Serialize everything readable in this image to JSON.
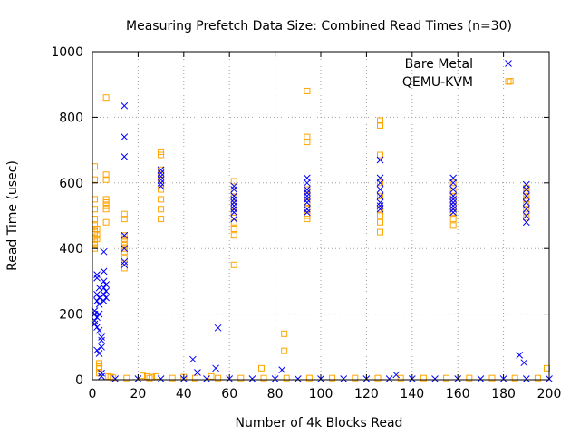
{
  "chart_data": {
    "type": "scatter",
    "title": "Measuring Prefetch Data Size: Combined Read Times (n=30)",
    "xlabel": "Number of 4k Blocks Read",
    "ylabel": "Read Time (usec)",
    "xlim": [
      0,
      200
    ],
    "ylim": [
      0,
      1000
    ],
    "xticks": [
      0,
      20,
      40,
      60,
      80,
      100,
      120,
      140,
      160,
      180,
      200
    ],
    "yticks": [
      0,
      200,
      400,
      600,
      800,
      1000
    ],
    "grid": true,
    "legend_position": "top-right",
    "series": [
      {
        "name": "Bare Metal",
        "marker": "x",
        "color": "#0000ff",
        "points": [
          [
            1,
            180
          ],
          [
            1,
            200
          ],
          [
            1,
            170
          ],
          [
            1,
            210
          ],
          [
            2,
            90
          ],
          [
            2,
            160
          ],
          [
            2,
            190
          ],
          [
            2,
            240
          ],
          [
            2,
            260
          ],
          [
            2,
            310
          ],
          [
            2,
            320
          ],
          [
            3,
            80
          ],
          [
            3,
            150
          ],
          [
            3,
            200
          ],
          [
            3,
            230
          ],
          [
            3,
            250
          ],
          [
            3,
            280
          ],
          [
            4,
            100
          ],
          [
            4,
            120
          ],
          [
            4,
            130
          ],
          [
            4,
            20
          ],
          [
            4,
            10
          ],
          [
            5,
            240
          ],
          [
            5,
            260
          ],
          [
            5,
            280
          ],
          [
            5,
            300
          ],
          [
            5,
            330
          ],
          [
            5,
            390
          ],
          [
            6,
            250
          ],
          [
            6,
            270
          ],
          [
            6,
            290
          ],
          [
            14,
            835
          ],
          [
            14,
            740
          ],
          [
            14,
            680
          ],
          [
            14,
            440
          ],
          [
            14,
            400
          ],
          [
            14,
            360
          ],
          [
            14,
            350
          ],
          [
            30,
            640
          ],
          [
            30,
            630
          ],
          [
            30,
            620
          ],
          [
            30,
            610
          ],
          [
            30,
            600
          ],
          [
            30,
            590
          ],
          [
            44,
            62
          ],
          [
            46,
            22
          ],
          [
            54,
            35
          ],
          [
            55,
            158
          ],
          [
            62,
            590
          ],
          [
            62,
            580
          ],
          [
            62,
            560
          ],
          [
            62,
            550
          ],
          [
            62,
            540
          ],
          [
            62,
            530
          ],
          [
            62,
            520
          ],
          [
            62,
            510
          ],
          [
            62,
            490
          ],
          [
            83,
            30
          ],
          [
            94,
            615
          ],
          [
            94,
            600
          ],
          [
            94,
            580
          ],
          [
            94,
            570
          ],
          [
            94,
            560
          ],
          [
            94,
            550
          ],
          [
            94,
            540
          ],
          [
            94,
            520
          ],
          [
            94,
            510
          ],
          [
            126,
            670
          ],
          [
            126,
            615
          ],
          [
            126,
            600
          ],
          [
            126,
            580
          ],
          [
            126,
            560
          ],
          [
            126,
            540
          ],
          [
            126,
            530
          ],
          [
            126,
            520
          ],
          [
            133,
            15
          ],
          [
            158,
            615
          ],
          [
            158,
            600
          ],
          [
            158,
            580
          ],
          [
            158,
            560
          ],
          [
            158,
            550
          ],
          [
            158,
            540
          ],
          [
            158,
            530
          ],
          [
            158,
            520
          ],
          [
            158,
            510
          ],
          [
            187,
            75
          ],
          [
            189,
            52
          ],
          [
            190,
            595
          ],
          [
            190,
            580
          ],
          [
            190,
            560
          ],
          [
            190,
            540
          ],
          [
            190,
            520
          ],
          [
            190,
            500
          ],
          [
            190,
            480
          ],
          [
            10,
            2
          ],
          [
            20,
            2
          ],
          [
            30,
            2
          ],
          [
            40,
            2
          ],
          [
            50,
            2
          ],
          [
            60,
            2
          ],
          [
            70,
            2
          ],
          [
            80,
            2
          ],
          [
            90,
            2
          ],
          [
            100,
            2
          ],
          [
            110,
            2
          ],
          [
            120,
            2
          ],
          [
            130,
            2
          ],
          [
            140,
            2
          ],
          [
            150,
            2
          ],
          [
            160,
            2
          ],
          [
            170,
            2
          ],
          [
            180,
            2
          ],
          [
            190,
            2
          ],
          [
            200,
            2
          ]
        ]
      },
      {
        "name": "QEMU-KVM",
        "marker": "square",
        "color": "#ffa500",
        "points": [
          [
            1,
            650
          ],
          [
            1,
            610
          ],
          [
            1,
            550
          ],
          [
            1,
            520
          ],
          [
            1,
            490
          ],
          [
            1,
            470
          ],
          [
            1,
            460
          ],
          [
            1,
            450
          ],
          [
            1,
            430
          ],
          [
            1,
            420
          ],
          [
            1,
            410
          ],
          [
            1,
            400
          ],
          [
            2,
            460
          ],
          [
            2,
            440
          ],
          [
            2,
            430
          ],
          [
            3,
            50
          ],
          [
            3,
            40
          ],
          [
            3,
            35
          ],
          [
            3,
            20
          ],
          [
            6,
            860
          ],
          [
            6,
            625
          ],
          [
            6,
            610
          ],
          [
            6,
            550
          ],
          [
            6,
            540
          ],
          [
            6,
            530
          ],
          [
            6,
            520
          ],
          [
            6,
            480
          ],
          [
            7,
            10
          ],
          [
            8,
            8
          ],
          [
            9,
            6
          ],
          [
            14,
            505
          ],
          [
            14,
            490
          ],
          [
            14,
            440
          ],
          [
            14,
            430
          ],
          [
            14,
            420
          ],
          [
            14,
            410
          ],
          [
            14,
            400
          ],
          [
            14,
            390
          ],
          [
            14,
            370
          ],
          [
            14,
            340
          ],
          [
            22,
            12
          ],
          [
            24,
            10
          ],
          [
            26,
            8
          ],
          [
            28,
            10
          ],
          [
            30,
            695
          ],
          [
            30,
            685
          ],
          [
            30,
            640
          ],
          [
            30,
            625
          ],
          [
            30,
            610
          ],
          [
            30,
            580
          ],
          [
            30,
            550
          ],
          [
            30,
            520
          ],
          [
            30,
            490
          ],
          [
            40,
            8
          ],
          [
            52,
            10
          ],
          [
            62,
            605
          ],
          [
            62,
            575
          ],
          [
            62,
            555
          ],
          [
            62,
            530
          ],
          [
            62,
            510
          ],
          [
            62,
            480
          ],
          [
            62,
            460
          ],
          [
            62,
            440
          ],
          [
            62,
            350
          ],
          [
            74,
            35
          ],
          [
            84,
            140
          ],
          [
            84,
            88
          ],
          [
            94,
            880
          ],
          [
            94,
            740
          ],
          [
            94,
            725
          ],
          [
            94,
            580
          ],
          [
            94,
            560
          ],
          [
            94,
            540
          ],
          [
            94,
            520
          ],
          [
            94,
            500
          ],
          [
            94,
            490
          ],
          [
            126,
            790
          ],
          [
            126,
            775
          ],
          [
            126,
            685
          ],
          [
            126,
            600
          ],
          [
            126,
            560
          ],
          [
            126,
            520
          ],
          [
            126,
            500
          ],
          [
            126,
            480
          ],
          [
            126,
            450
          ],
          [
            158,
            600
          ],
          [
            158,
            575
          ],
          [
            158,
            560
          ],
          [
            158,
            545
          ],
          [
            158,
            530
          ],
          [
            158,
            510
          ],
          [
            158,
            490
          ],
          [
            158,
            470
          ],
          [
            183,
            910
          ],
          [
            190,
            585
          ],
          [
            190,
            575
          ],
          [
            190,
            560
          ],
          [
            190,
            550
          ],
          [
            190,
            535
          ],
          [
            190,
            520
          ],
          [
            190,
            495
          ],
          [
            199,
            35
          ],
          [
            15,
            5
          ],
          [
            25,
            5
          ],
          [
            35,
            5
          ],
          [
            45,
            5
          ],
          [
            55,
            5
          ],
          [
            65,
            5
          ],
          [
            75,
            5
          ],
          [
            85,
            5
          ],
          [
            95,
            5
          ],
          [
            105,
            5
          ],
          [
            115,
            5
          ],
          [
            125,
            5
          ],
          [
            135,
            5
          ],
          [
            145,
            5
          ],
          [
            155,
            5
          ],
          [
            165,
            5
          ],
          [
            175,
            5
          ],
          [
            185,
            5
          ],
          [
            195,
            5
          ]
        ]
      }
    ]
  }
}
